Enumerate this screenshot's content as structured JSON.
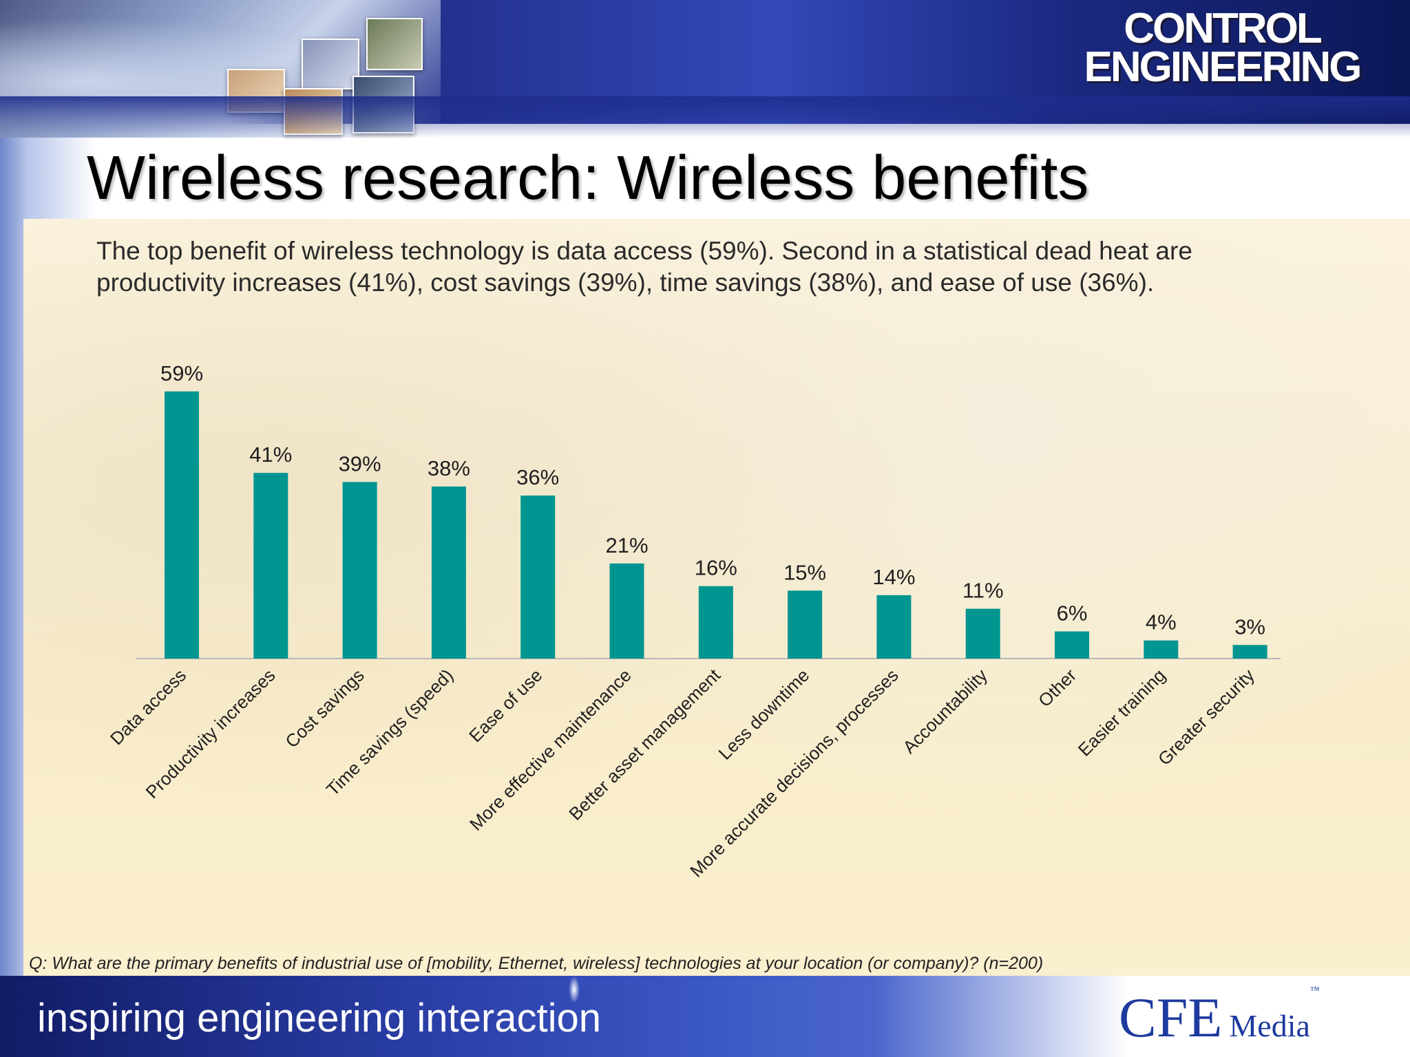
{
  "slide": {
    "title": "Wireless research: Wireless benefits",
    "summary_line1": "The top benefit of wireless technology is data access (59%). Second in a statistical dead heat are",
    "summary_line2": "productivity increases (41%), cost savings (39%), time savings (38%), and ease of use (36%).",
    "question": "Q: What are the primary benefits of industrial use of [mobility, Ethernet, wireless] technologies at your location (or company)? (n=200)",
    "tagline": "inspiring engineering interaction"
  },
  "logos": {
    "control_engineering_line1": "CONTROL",
    "control_engineering_line2": "ENGINEERING",
    "cfe": "CFE",
    "media": "Media",
    "tm": "™"
  },
  "colors": {
    "bar": "#009590",
    "header_blue": "#22308c"
  },
  "chart_data": {
    "type": "bar",
    "title": "",
    "xlabel": "",
    "ylabel": "",
    "ylim": [
      0,
      60
    ],
    "grid": false,
    "legend": "none",
    "categories": [
      "Data access",
      "Productivity increases",
      "Cost savings",
      "Time savings (speed)",
      "Ease of use",
      "More effective maintenance",
      "Better asset management",
      "Less downtime",
      "More accurate decisions, processes",
      "Accountability",
      "Other",
      "Easier training",
      "Greater security"
    ],
    "values": [
      59,
      41,
      39,
      38,
      36,
      21,
      16,
      15,
      14,
      11,
      6,
      4,
      3
    ],
    "value_labels": [
      "59%",
      "41%",
      "39%",
      "38%",
      "36%",
      "21%",
      "16%",
      "15%",
      "14%",
      "11%",
      "6%",
      "4%",
      "3%"
    ]
  }
}
